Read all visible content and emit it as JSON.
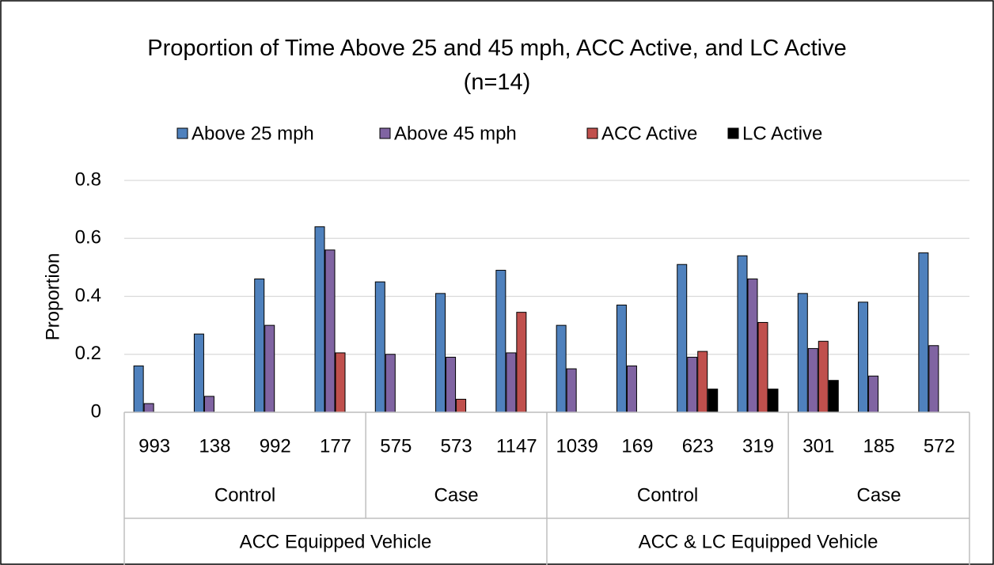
{
  "chart_data": {
    "type": "bar",
    "title": "Proportion of Time Above 25 and 45 mph, ACC Active, and LC Active (n=14)",
    "y_label": "Proportion",
    "groups": [
      {
        "name": "ACC Equipped Vehicle",
        "subgroups": [
          {
            "name": "Control",
            "categories": [
              "993",
              "138",
              "992",
              "177"
            ]
          },
          {
            "name": "Case",
            "categories": [
              "575",
              "573",
              "1147"
            ]
          }
        ]
      },
      {
        "name": "ACC & LC Equipped Vehicle",
        "subgroups": [
          {
            "name": "Control",
            "categories": [
              "1039",
              "169",
              "623",
              "319"
            ]
          },
          {
            "name": "Case",
            "categories": [
              "301",
              "185",
              "572"
            ]
          }
        ]
      }
    ],
    "series": [
      {
        "name": "Above 25 mph",
        "color": "#4f81bd",
        "values": [
          0.16,
          0.27,
          0.46,
          0.64,
          0.45,
          0.41,
          0.49,
          0.3,
          0.37,
          0.51,
          0.54,
          0.41,
          0.38,
          0.55
        ]
      },
      {
        "name": "Above 45 mph",
        "color": "#8064a2",
        "values": [
          0.03,
          0.055,
          0.3,
          0.56,
          0.2,
          0.19,
          0.205,
          0.15,
          0.16,
          0.19,
          0.46,
          0.22,
          0.125,
          0.23
        ]
      },
      {
        "name": "ACC Active",
        "color": "#c0504d",
        "values": [
          0,
          0,
          0,
          0.205,
          0,
          0.045,
          0.345,
          0,
          0,
          0.21,
          0.31,
          0.245,
          0,
          0
        ]
      },
      {
        "name": "LC Active",
        "color": "#000000",
        "values": [
          null,
          null,
          null,
          null,
          null,
          null,
          null,
          0,
          0,
          0.08,
          0.08,
          0.11,
          0,
          0
        ]
      }
    ],
    "ylim": [
      0,
      0.8
    ],
    "yticks": [
      0,
      0.2,
      0.4,
      0.6,
      0.8
    ],
    "grid": true,
    "legend": "top"
  }
}
